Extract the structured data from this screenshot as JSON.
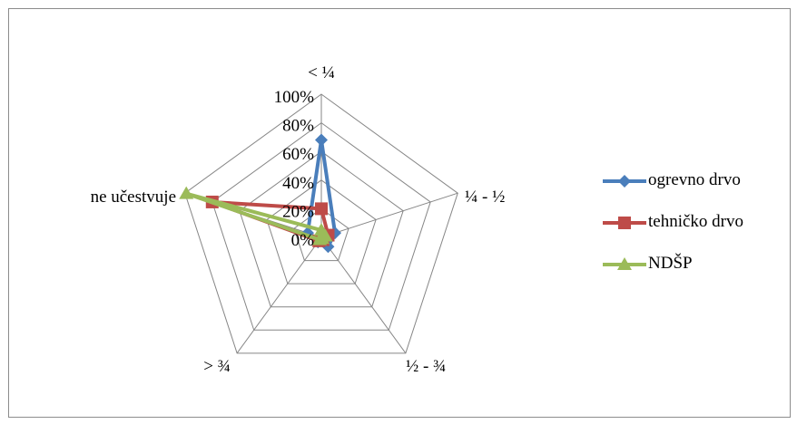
{
  "chart_data": {
    "type": "radar",
    "categories": [
      "< ¼",
      "¼ - ½",
      "½ - ¾",
      "> ¾",
      "ne učestvuje"
    ],
    "r_ticks": [
      "0%",
      "20%",
      "40%",
      "60%",
      "80%",
      "100%"
    ],
    "rlim": [
      0,
      100
    ],
    "grid": true,
    "legend_position": "right",
    "series": [
      {
        "name": "ogrevno drvo",
        "color": "#4a7ebb",
        "marker": "diamond",
        "values": [
          68,
          10,
          8,
          4,
          10
        ]
      },
      {
        "name": "tehničko drvo",
        "color": "#be4b48",
        "marker": "square",
        "values": [
          20,
          5,
          2,
          3,
          80
        ]
      },
      {
        "name": "NDŠP",
        "color": "#9bbb59",
        "marker": "triangle",
        "values": [
          5,
          3,
          1,
          2,
          99
        ]
      }
    ]
  }
}
